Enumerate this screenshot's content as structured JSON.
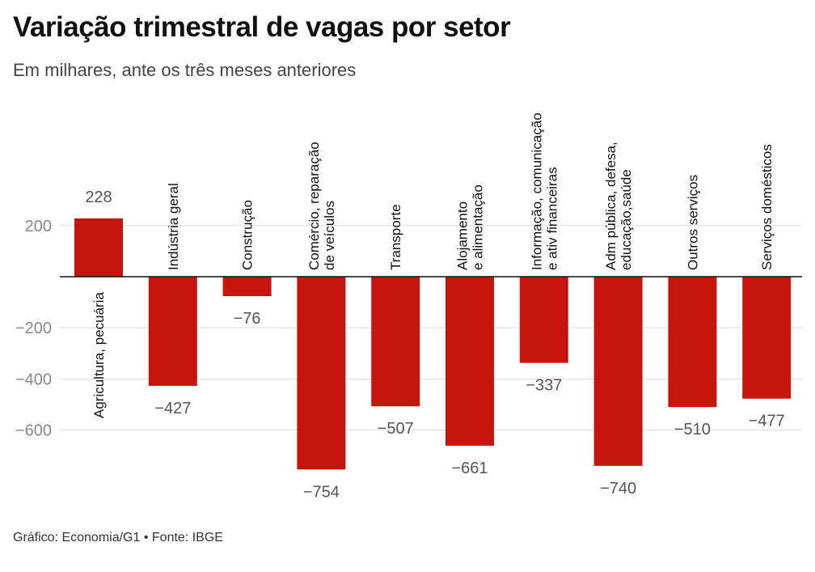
{
  "header": {
    "title": "Variação trimestral de vagas por setor",
    "subtitle": "Em milhares, ante os três meses anteriores"
  },
  "footer": {
    "source": "Gráfico: Economia/G1 • Fonte: IBGE"
  },
  "colors": {
    "bar": "#c4160d",
    "grid": "#dddddd",
    "zero_line": "#111111"
  },
  "chart_data": {
    "type": "bar",
    "title": "Variação trimestral de vagas por setor",
    "subtitle": "Em milhares, ante os três meses anteriores",
    "xlabel": "",
    "ylabel": "",
    "ylim": [
      -754,
      228
    ],
    "yticks": [
      200,
      -200,
      -400,
      -600
    ],
    "ytick_labels": [
      "200",
      "−200",
      "−400",
      "−600"
    ],
    "grid": true,
    "categories": [
      [
        "Agricultura, pecuária"
      ],
      [
        "Indústria geral"
      ],
      [
        "Construção"
      ],
      [
        "Comércio, reparação",
        "de veículos"
      ],
      [
        "Transporte"
      ],
      [
        "Alojamento",
        "e alimentação"
      ],
      [
        "Informação, comunicação",
        "e ativ financeiras"
      ],
      [
        "Adm pública, defesa,",
        "educação,saúde"
      ],
      [
        "Outros serviços"
      ],
      [
        "Serviços domésticos"
      ]
    ],
    "values": [
      228,
      -427,
      -76,
      -754,
      -507,
      -661,
      -337,
      -740,
      -510,
      -477
    ],
    "value_labels": [
      "228",
      "−427",
      "−76",
      "−754",
      "−507",
      "−661",
      "−337",
      "−740",
      "−510",
      "−477"
    ]
  }
}
